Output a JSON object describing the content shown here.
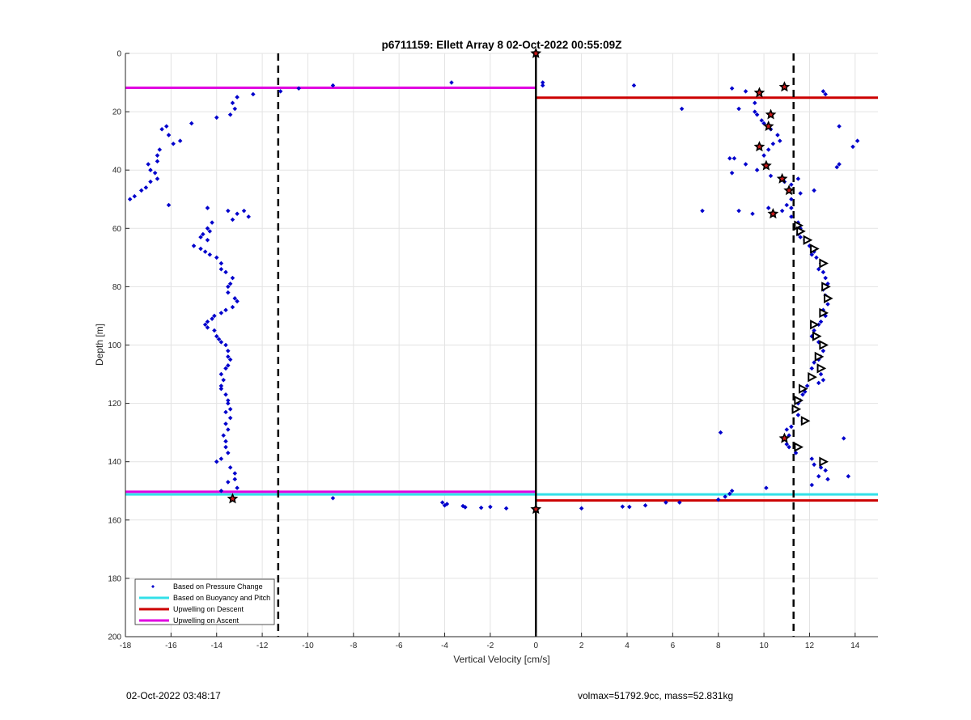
{
  "chart_data": {
    "type": "scatter",
    "title": "p6711159: Ellett Array 8 02-Oct-2022 00:55:09Z",
    "xlabel": "Vertical Velocity [cm/s]",
    "ylabel": "Depth [m]",
    "xlim": [
      -18,
      15
    ],
    "ylim": [
      0,
      200
    ],
    "y_reversed": true,
    "grid": true,
    "xticks": [
      -18,
      -16,
      -14,
      -12,
      -10,
      -8,
      -6,
      -4,
      -2,
      0,
      2,
      4,
      6,
      8,
      10,
      12,
      14
    ],
    "yticks": [
      0,
      20,
      40,
      60,
      80,
      100,
      120,
      140,
      160,
      180,
      200
    ],
    "legend_position": "bottom-left",
    "legend": [
      {
        "label": "Based on Pressure Change",
        "color": "#0000cc",
        "kind": "marker"
      },
      {
        "label": "Based on Buoyancy and Pitch",
        "color": "#33e0e8",
        "kind": "line"
      },
      {
        "label": "Upwelling on Descent",
        "color": "#cc0000",
        "kind": "line"
      },
      {
        "label": "Upwelling on Ascent",
        "color": "#e000e0",
        "kind": "line"
      }
    ],
    "reference_lines": {
      "zero_line": {
        "x": 0,
        "color": "#000000"
      },
      "dashed_vertical": [
        -11.3,
        11.3
      ]
    },
    "segments": [
      {
        "series": "Upwelling on Ascent",
        "color": "#e000e0",
        "x0": -18,
        "x1": 0,
        "y0": 11.8,
        "y1": 11.8
      },
      {
        "series": "Upwelling on Ascent",
        "color": "#e000e0",
        "x0": -18,
        "x1": 0,
        "y0": 150.3,
        "y1": 150.3
      },
      {
        "series": "Upwelling on Descent",
        "color": "#cc0000",
        "x0": 0,
        "x1": 15,
        "y0": 15.2,
        "y1": 15.2
      },
      {
        "series": "Upwelling on Descent",
        "color": "#cc0000",
        "x0": 0,
        "x1": 15,
        "y0": 153.3,
        "y1": 153.3
      },
      {
        "series": "Based on Buoyancy and Pitch",
        "color": "#33e0e8",
        "x0": -18,
        "x1": 0,
        "y0": 151.2,
        "y1": 151.2
      },
      {
        "series": "Based on Buoyancy and Pitch",
        "color": "#33e0e8",
        "x0": 0,
        "x1": 15,
        "y0": 151.2,
        "y1": 151.2
      }
    ],
    "series": [
      {
        "name": "Based on Pressure Change",
        "color": "#0000cc",
        "points": [
          [
            -13.1,
            15
          ],
          [
            -13.3,
            17
          ],
          [
            -13.2,
            19
          ],
          [
            -13.4,
            21
          ],
          [
            -14,
            22
          ],
          [
            -12.4,
            14
          ],
          [
            -11.2,
            13
          ],
          [
            -10.4,
            12
          ],
          [
            -8.9,
            11
          ],
          [
            -3.7,
            10
          ],
          [
            -15.1,
            24
          ],
          [
            -16.2,
            25
          ],
          [
            -16.4,
            26
          ],
          [
            -16.1,
            28
          ],
          [
            -15.6,
            30
          ],
          [
            -15.9,
            31
          ],
          [
            -16.5,
            33
          ],
          [
            -16.6,
            35
          ],
          [
            -16.6,
            37
          ],
          [
            -17,
            38
          ],
          [
            -16.9,
            40
          ],
          [
            -16.7,
            41
          ],
          [
            -16.6,
            43
          ],
          [
            -16.9,
            44
          ],
          [
            -17.1,
            46
          ],
          [
            -17.3,
            47
          ],
          [
            -17.6,
            49
          ],
          [
            -17.8,
            50
          ],
          [
            -16.1,
            52
          ],
          [
            -14.4,
            53
          ],
          [
            -13.5,
            54
          ],
          [
            -12.8,
            54
          ],
          [
            -13.1,
            55
          ],
          [
            -12.6,
            56
          ],
          [
            -13.3,
            57
          ],
          [
            -14.2,
            58
          ],
          [
            -14.4,
            60
          ],
          [
            -14.3,
            61
          ],
          [
            -14.6,
            62
          ],
          [
            -14.7,
            63
          ],
          [
            -14.4,
            64
          ],
          [
            -15,
            66
          ],
          [
            -14.7,
            67
          ],
          [
            -14.5,
            68
          ],
          [
            -14.3,
            69
          ],
          [
            -14,
            70
          ],
          [
            -13.8,
            72
          ],
          [
            -13.8,
            74
          ],
          [
            -13.6,
            75
          ],
          [
            -13.3,
            77
          ],
          [
            -13.4,
            79
          ],
          [
            -13.5,
            80
          ],
          [
            -13.5,
            82
          ],
          [
            -13.2,
            84
          ],
          [
            -13.1,
            85
          ],
          [
            -13.3,
            87
          ],
          [
            -13.6,
            88
          ],
          [
            -13.8,
            89
          ],
          [
            -14.1,
            90
          ],
          [
            -14.2,
            91
          ],
          [
            -14.4,
            92
          ],
          [
            -14.5,
            93
          ],
          [
            -14.4,
            94
          ],
          [
            -14.1,
            95
          ],
          [
            -14,
            97
          ],
          [
            -13.9,
            98
          ],
          [
            -13.8,
            99
          ],
          [
            -13.6,
            100
          ],
          [
            -13.5,
            102
          ],
          [
            -13.5,
            104
          ],
          [
            -13.4,
            105
          ],
          [
            -13.5,
            107
          ],
          [
            -13.6,
            108
          ],
          [
            -13.8,
            110
          ],
          [
            -13.7,
            112
          ],
          [
            -13.8,
            114
          ],
          [
            -13.8,
            115
          ],
          [
            -13.6,
            117
          ],
          [
            -13.5,
            119
          ],
          [
            -13.5,
            120
          ],
          [
            -13.4,
            122
          ],
          [
            -13.6,
            123
          ],
          [
            -13.4,
            125
          ],
          [
            -13.6,
            127
          ],
          [
            -13.5,
            129
          ],
          [
            -13.7,
            131
          ],
          [
            -13.6,
            133
          ],
          [
            -13.6,
            135
          ],
          [
            -13.5,
            137
          ],
          [
            -13.8,
            139
          ],
          [
            -14,
            140
          ],
          [
            -13.4,
            142
          ],
          [
            -13.2,
            144
          ],
          [
            -13.2,
            146
          ],
          [
            -13.5,
            147
          ],
          [
            -13.1,
            149
          ],
          [
            -13.8,
            150
          ],
          [
            -8.9,
            152.5
          ],
          [
            -4.1,
            154
          ],
          [
            -3.9,
            154.5
          ],
          [
            -4,
            155
          ],
          [
            -3.2,
            155.2
          ],
          [
            -3.1,
            155.6
          ],
          [
            -2.4,
            155.8
          ],
          [
            -2,
            155.5
          ],
          [
            -1.3,
            156
          ],
          [
            0.3,
            10
          ],
          [
            0.3,
            11
          ],
          [
            4.3,
            11
          ],
          [
            6.4,
            19
          ],
          [
            8.6,
            12
          ],
          [
            9.2,
            13
          ],
          [
            8.9,
            19
          ],
          [
            9.6,
            17
          ],
          [
            9.6,
            20
          ],
          [
            9.7,
            21
          ],
          [
            9.9,
            23
          ],
          [
            10,
            24
          ],
          [
            10.3,
            26
          ],
          [
            10.6,
            28
          ],
          [
            10.7,
            30
          ],
          [
            10.4,
            31
          ],
          [
            10.2,
            33
          ],
          [
            10,
            35
          ],
          [
            8.5,
            36
          ],
          [
            8.7,
            36
          ],
          [
            9.2,
            38
          ],
          [
            9.7,
            40
          ],
          [
            8.6,
            41
          ],
          [
            10.3,
            42
          ],
          [
            10.9,
            44
          ],
          [
            11.5,
            43
          ],
          [
            11.2,
            45
          ],
          [
            12.2,
            47
          ],
          [
            11.6,
            48
          ],
          [
            11.2,
            50
          ],
          [
            11,
            52
          ],
          [
            11.2,
            53
          ],
          [
            10.2,
            53
          ],
          [
            10.8,
            54
          ],
          [
            9.5,
            55
          ],
          [
            8.9,
            54
          ],
          [
            7.3,
            54
          ],
          [
            11.2,
            56
          ],
          [
            11.5,
            58
          ],
          [
            11.6,
            60
          ],
          [
            11.5,
            62
          ],
          [
            11.6,
            63
          ],
          [
            11.8,
            64
          ],
          [
            12,
            66
          ],
          [
            12.2,
            68
          ],
          [
            12.1,
            69
          ],
          [
            12.3,
            70
          ],
          [
            12.5,
            72
          ],
          [
            12.4,
            74
          ],
          [
            12.6,
            75
          ],
          [
            12.7,
            77
          ],
          [
            12.8,
            79
          ],
          [
            12.6,
            81
          ],
          [
            12.7,
            83
          ],
          [
            12.8,
            84
          ],
          [
            12.8,
            86
          ],
          [
            12.6,
            88
          ],
          [
            12.7,
            90
          ],
          [
            12.5,
            92
          ],
          [
            12.4,
            93
          ],
          [
            12.2,
            95
          ],
          [
            12.1,
            97
          ],
          [
            12.4,
            99
          ],
          [
            12.6,
            100
          ],
          [
            12.6,
            102
          ],
          [
            12.5,
            104
          ],
          [
            12.4,
            105
          ],
          [
            12.2,
            106
          ],
          [
            12.1,
            108
          ],
          [
            12.5,
            110
          ],
          [
            12.6,
            112
          ],
          [
            12.4,
            113
          ],
          [
            11.9,
            114
          ],
          [
            11.8,
            116
          ],
          [
            11.7,
            117
          ],
          [
            11.6,
            119
          ],
          [
            11.5,
            120
          ],
          [
            11.3,
            122
          ],
          [
            11.5,
            124
          ],
          [
            11.7,
            126
          ],
          [
            11.2,
            128
          ],
          [
            11,
            129
          ],
          [
            11.1,
            131
          ],
          [
            11,
            134
          ],
          [
            11.1,
            135
          ],
          [
            11.4,
            137
          ],
          [
            12.1,
            139
          ],
          [
            12.2,
            141
          ],
          [
            12.5,
            142
          ],
          [
            12.7,
            143
          ],
          [
            12.4,
            145
          ],
          [
            12.8,
            146
          ],
          [
            12.1,
            148
          ],
          [
            8.6,
            150
          ],
          [
            8.5,
            151
          ],
          [
            8.3,
            152
          ],
          [
            8,
            153
          ],
          [
            6.3,
            154
          ],
          [
            5.7,
            154
          ],
          [
            4.8,
            155
          ],
          [
            4.1,
            155.5
          ],
          [
            3.8,
            155.4
          ],
          [
            2,
            156
          ],
          [
            8.1,
            130
          ],
          [
            10.1,
            149
          ],
          [
            13.5,
            132
          ],
          [
            13.7,
            145
          ],
          [
            12.7,
            14
          ],
          [
            12.6,
            13
          ],
          [
            13.3,
            25
          ],
          [
            13.9,
            32
          ],
          [
            14.1,
            30
          ],
          [
            13.2,
            39
          ],
          [
            13.3,
            38
          ]
        ]
      },
      {
        "name": "descent-stars",
        "color": "#c81818",
        "points": [
          [
            0,
            0
          ],
          [
            9.8,
            13.5
          ],
          [
            10.9,
            11.5
          ],
          [
            10.3,
            21
          ],
          [
            10.2,
            25
          ],
          [
            9.8,
            32
          ],
          [
            10.1,
            38.5
          ],
          [
            10.8,
            43
          ],
          [
            11.1,
            47
          ],
          [
            10.4,
            55
          ],
          [
            10.9,
            132
          ],
          [
            -13.3,
            152.7
          ],
          [
            0,
            156.3
          ]
        ]
      },
      {
        "name": "ascent-triangles",
        "color": "#000000",
        "points": [
          [
            11.5,
            59
          ],
          [
            11.6,
            61
          ],
          [
            11.9,
            64
          ],
          [
            12.2,
            67
          ],
          [
            12.6,
            72
          ],
          [
            12.7,
            80
          ],
          [
            12.8,
            84
          ],
          [
            12.6,
            89
          ],
          [
            12.2,
            93
          ],
          [
            12.3,
            97
          ],
          [
            12.6,
            100
          ],
          [
            12.4,
            104
          ],
          [
            12.5,
            108
          ],
          [
            12.1,
            111
          ],
          [
            11.7,
            115
          ],
          [
            11.5,
            119
          ],
          [
            11.4,
            122
          ],
          [
            11.8,
            126
          ],
          [
            11.5,
            135
          ],
          [
            12.6,
            140
          ]
        ]
      }
    ]
  },
  "footer": {
    "timestamp": "02-Oct-2022 03:48:17",
    "stats": "volmax=51792.9cc, mass=52.831kg"
  }
}
